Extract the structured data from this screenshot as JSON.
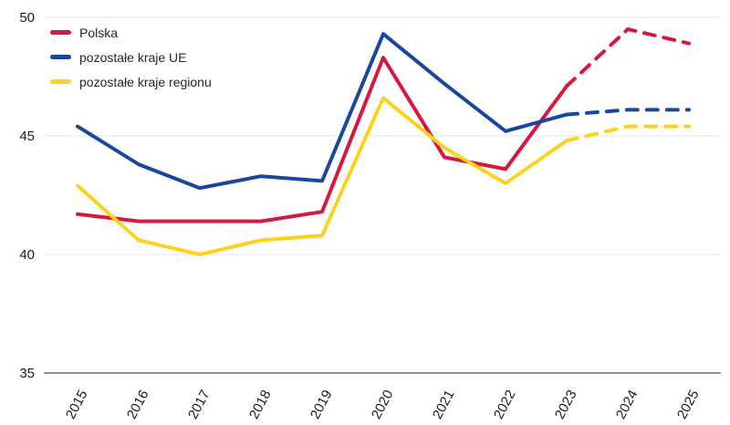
{
  "chart_data": {
    "type": "line",
    "title": "",
    "xlabel": "",
    "ylabel": "",
    "x": [
      2015,
      2016,
      2017,
      2018,
      2019,
      2020,
      2021,
      2022,
      2023,
      2024,
      2025
    ],
    "yticks": [
      35,
      40,
      45,
      50
    ],
    "ylim": [
      35,
      50
    ],
    "grid": "horizontal-only",
    "legend_position": "top-left",
    "series": [
      {
        "name": "Polska",
        "color": "#d6173e",
        "dashed_from_x": 2023,
        "values": [
          41.7,
          41.4,
          41.4,
          41.4,
          41.8,
          48.3,
          44.1,
          43.6,
          47.1,
          49.5,
          48.9
        ]
      },
      {
        "name": "pozostałe kraje UE",
        "color": "#17479e",
        "dashed_from_x": 2023,
        "values": [
          45.4,
          43.8,
          42.8,
          43.3,
          43.1,
          49.3,
          47.2,
          45.2,
          45.9,
          46.1,
          46.1
        ]
      },
      {
        "name": "pozostałe kraje regionu",
        "color": "#fcd21f",
        "dashed_from_x": 2023,
        "values": [
          42.9,
          40.6,
          40.0,
          40.6,
          40.8,
          46.6,
          44.5,
          43.0,
          44.8,
          45.4,
          45.4
        ]
      }
    ],
    "axis_colors": {
      "grid_line": "#e9e9e9",
      "axis_line": "#8f8f8f",
      "tick_text": "#1a1a1a"
    }
  }
}
